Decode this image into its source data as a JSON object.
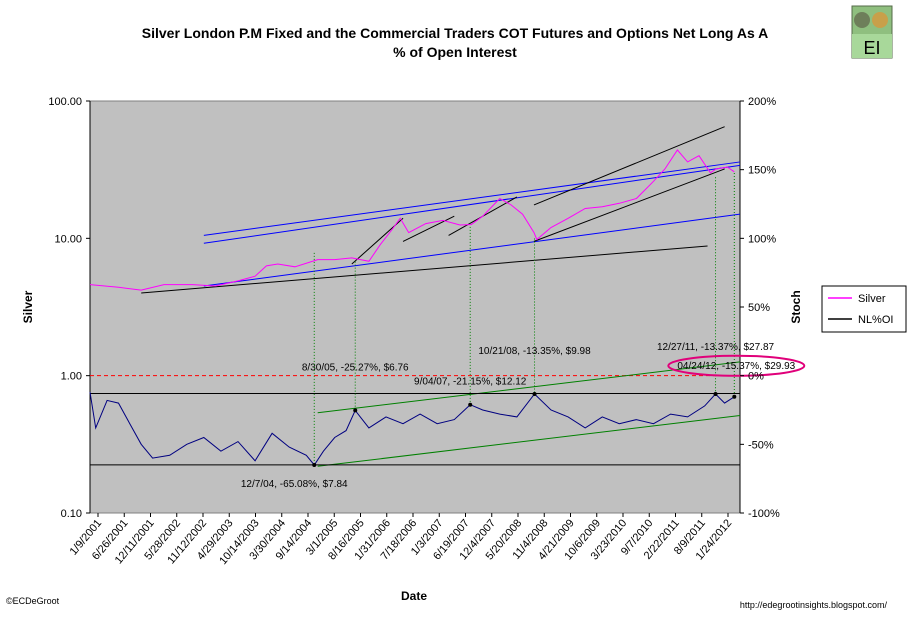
{
  "logo": {
    "text": "EI"
  },
  "copyright": "©ECDeGroot",
  "url": "http://edegrootinsights.blogspot.com/",
  "chart_data": {
    "type": "line",
    "title_line1": "Silver London P.M Fixed and the Commercial Traders COT Futures and Options Net Long As A",
    "title_line2": "% of Open Interest",
    "xlabel": "Date",
    "ylabel_left": "Silver",
    "ylabel_right": "Stoch",
    "y_left_scale": "log",
    "y_left_ticks": [
      "100.00",
      "10.00",
      "1.00",
      "0.10"
    ],
    "y_left_values": [
      100,
      10,
      1,
      0.1
    ],
    "y_left_lim": [
      0.1,
      100
    ],
    "y_right_ticks": [
      "200%",
      "150%",
      "100%",
      "50%",
      "0%",
      "-50%",
      "-100%"
    ],
    "y_right_values": [
      200,
      150,
      100,
      50,
      0,
      -50,
      -100
    ],
    "y_right_lim": [
      -100,
      200
    ],
    "x_ticks": [
      "1/9/2001",
      "6/26/2001",
      "12/11/2001",
      "5/28/2002",
      "11/12/2002",
      "4/29/2003",
      "10/14/2003",
      "3/30/2004",
      "9/14/2004",
      "3/1/2005",
      "8/16/2005",
      "1/31/2006",
      "7/18/2006",
      "1/3/2007",
      "6/19/2007",
      "12/4/2007",
      "5/20/2008",
      "11/4/2008",
      "4/21/2009",
      "10/6/2009",
      "3/23/2010",
      "9/7/2010",
      "2/22/2011",
      "8/9/2011",
      "1/24/2012"
    ],
    "x_start_year": 2001.0,
    "x_end_year": 2012.42,
    "legend": [
      {
        "name": "Silver",
        "color": "#ff00ff"
      },
      {
        "name": "NL%OI",
        "color": "#000000"
      }
    ],
    "silver_series": {
      "name": "Silver",
      "color": "#ff00ff",
      "axis": "left",
      "x_year": [
        2001.0,
        2001.5,
        2001.9,
        2002.3,
        2002.8,
        2003.2,
        2003.6,
        2003.9,
        2004.1,
        2004.3,
        2004.6,
        2005.0,
        2005.3,
        2005.6,
        2005.9,
        2006.1,
        2006.3,
        2006.45,
        2006.6,
        2006.9,
        2007.2,
        2007.5,
        2007.7,
        2007.9,
        2008.2,
        2008.4,
        2008.6,
        2008.8,
        2008.85,
        2009.1,
        2009.4,
        2009.7,
        2010.0,
        2010.3,
        2010.6,
        2010.9,
        2011.1,
        2011.32,
        2011.5,
        2011.7,
        2011.9,
        2012.0,
        2012.2,
        2012.32
      ],
      "values": [
        4.6,
        4.4,
        4.2,
        4.6,
        4.6,
        4.5,
        4.9,
        5.3,
        6.3,
        6.5,
        6.2,
        7.0,
        7.0,
        7.2,
        6.8,
        9.0,
        11.5,
        14.0,
        11.0,
        12.8,
        13.5,
        12.5,
        12.6,
        14.5,
        19.5,
        17.5,
        15.0,
        11.0,
        9.8,
        12.0,
        14.0,
        16.5,
        17.0,
        18.0,
        19.5,
        26.0,
        32.0,
        44.0,
        36.0,
        40.0,
        30.0,
        32.0,
        33.0,
        30.5
      ]
    },
    "nloi_series": {
      "name": "NL%OI",
      "color": "#000080",
      "axis": "right",
      "x_year": [
        2001.0,
        2001.1,
        2001.3,
        2001.5,
        2001.7,
        2001.9,
        2002.1,
        2002.4,
        2002.7,
        2003.0,
        2003.3,
        2003.6,
        2003.9,
        2004.2,
        2004.5,
        2004.8,
        2004.94,
        2005.1,
        2005.3,
        2005.5,
        2005.66,
        2005.9,
        2006.2,
        2006.5,
        2006.8,
        2007.1,
        2007.4,
        2007.68,
        2007.9,
        2008.2,
        2008.5,
        2008.81,
        2009.1,
        2009.4,
        2009.7,
        2010.0,
        2010.3,
        2010.6,
        2010.9,
        2011.2,
        2011.5,
        2011.8,
        2011.99,
        2012.15,
        2012.32
      ],
      "values": [
        -12,
        -38,
        -18,
        -20,
        -35,
        -50,
        -60,
        -58,
        -50,
        -45,
        -55,
        -48,
        -62,
        -42,
        -52,
        -58,
        -65.08,
        -55,
        -45,
        -40,
        -25.27,
        -38,
        -30,
        -35,
        -28,
        -35,
        -32,
        -21.15,
        -25,
        -28,
        -30,
        -13.35,
        -25,
        -30,
        -38,
        -30,
        -35,
        -32,
        -35,
        -28,
        -30,
        -22,
        -13.37,
        -20,
        -15.37
      ]
    },
    "reference_lines": [
      {
        "label": "0% level",
        "axis": "right",
        "value": 0,
        "color": "#ff0000",
        "style": "dashed"
      }
    ],
    "trend_lines": [
      {
        "name": "silver-upper-blue-1",
        "color": "#0000ff",
        "from": [
          2003.0,
          9.2
        ],
        "to": [
          2012.42,
          34.0
        ]
      },
      {
        "name": "silver-upper-blue-2",
        "color": "#0000ff",
        "from": [
          2003.0,
          10.5
        ],
        "to": [
          2012.42,
          36.0
        ]
      },
      {
        "name": "silver-mid-blue",
        "color": "#0000ff",
        "from": [
          2003.0,
          4.5
        ],
        "to": [
          2012.42,
          15.0
        ]
      },
      {
        "name": "silver-black-base",
        "color": "#000000",
        "from": [
          2001.9,
          4.0
        ],
        "to": [
          2011.85,
          8.8
        ]
      },
      {
        "name": "silver-black-2005",
        "color": "#000000",
        "from": [
          2005.6,
          6.5
        ],
        "to": [
          2006.5,
          14.0
        ]
      },
      {
        "name": "silver-black-2006",
        "color": "#000000",
        "from": [
          2006.5,
          9.5
        ],
        "to": [
          2007.4,
          14.5
        ]
      },
      {
        "name": "silver-black-2007",
        "color": "#000000",
        "from": [
          2007.3,
          10.5
        ],
        "to": [
          2008.5,
          20.0
        ]
      },
      {
        "name": "silver-black-2008",
        "color": "#000000",
        "from": [
          2008.8,
          9.5
        ],
        "to": [
          2012.15,
          32.0
        ]
      },
      {
        "name": "silver-black-top",
        "color": "#000000",
        "from": [
          2008.8,
          17.5
        ],
        "to": [
          2012.15,
          65.0
        ]
      },
      {
        "name": "nloi-green-upper",
        "color": "#008000",
        "axis": "right",
        "from": [
          2005.0,
          -27
        ],
        "to": [
          2012.42,
          10
        ]
      },
      {
        "name": "nloi-green-lower",
        "color": "#008000",
        "axis": "right",
        "from": [
          2005.0,
          -66
        ],
        "to": [
          2012.42,
          -29
        ]
      },
      {
        "name": "nloi-black-hi",
        "color": "#000000",
        "axis": "right",
        "from": [
          2001.0,
          -13
        ],
        "to": [
          2012.42,
          -13
        ]
      },
      {
        "name": "nloi-black-lo",
        "color": "#000000",
        "axis": "right",
        "from": [
          2001.0,
          -65
        ],
        "to": [
          2012.42,
          -65
        ]
      }
    ],
    "annotations": [
      {
        "text": "8/30/05, -25.27%, $6.76",
        "date": 2005.66,
        "silver": 6.76,
        "nloi": -25.27
      },
      {
        "text": "9/04/07, -21.15%, $12.12",
        "date": 2007.68,
        "silver": 12.12,
        "nloi": -21.15
      },
      {
        "text": "10/21/08, -13.35%, $9.98",
        "date": 2008.81,
        "silver": 9.98,
        "nloi": -13.35
      },
      {
        "text": "12/27/11, -13.37%, $27.87",
        "date": 2011.99,
        "silver": 27.87,
        "nloi": -13.37
      },
      {
        "text": "04/24/12, -15.37%, $29.93",
        "date": 2012.32,
        "silver": 29.93,
        "nloi": -15.37,
        "circled": true
      },
      {
        "text": "12/7/04, -65.08%, $7.84",
        "date": 2004.94,
        "silver": 7.84,
        "nloi": -65.08
      }
    ]
  }
}
